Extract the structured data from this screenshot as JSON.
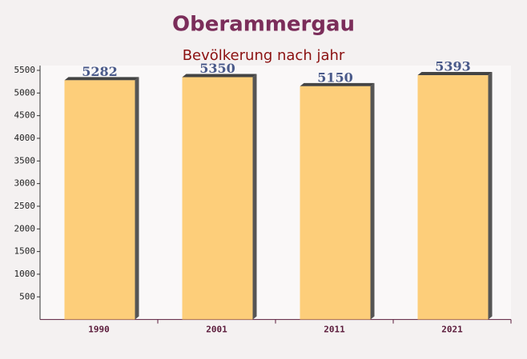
{
  "chart_data": {
    "type": "bar",
    "title": "Oberammergau",
    "subtitle": "Bevölkerung nach jahr",
    "categories": [
      "1990",
      "2001",
      "2011",
      "2021"
    ],
    "values": [
      5282,
      5350,
      5150,
      5393
    ],
    "color": "#fdc96b",
    "ylim": [
      0,
      5500
    ],
    "yticks": [
      500,
      1000,
      1500,
      2000,
      2500,
      3000,
      3500,
      4000,
      4500,
      5000,
      5500
    ],
    "grid": false
  }
}
